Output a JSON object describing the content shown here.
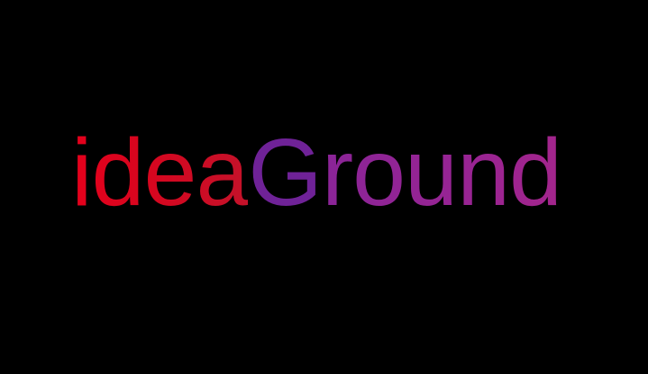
{
  "logo": {
    "text_part_1": "idea",
    "text_part_2": "G",
    "text_part_3": "round",
    "colors": {
      "background": "#000000",
      "idea_start": "#e5001c",
      "idea_end": "#c4122a",
      "g": "#6f2297",
      "round_start": "#8a2497",
      "round_end": "#a3258c"
    }
  }
}
